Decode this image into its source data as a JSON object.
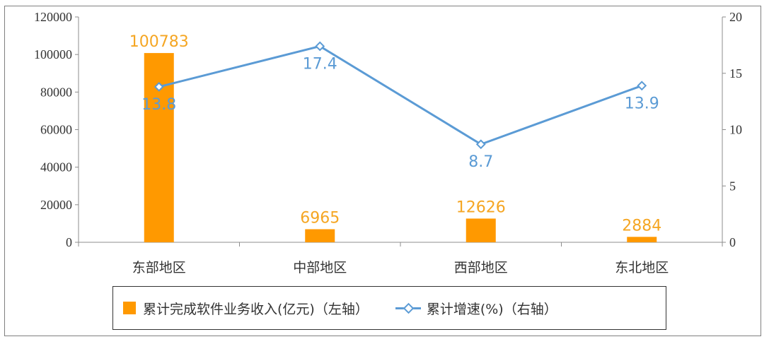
{
  "chart_data": {
    "type": "bar+line",
    "categories": [
      "东部地区",
      "中部地区",
      "西部地区",
      "东北地区"
    ],
    "series": [
      {
        "name": "累计完成软件业务收入(亿元)（左轴）",
        "type": "bar",
        "axis": "left",
        "color": "#ff9900",
        "values": [
          100783,
          6965,
          12626,
          2884
        ],
        "labels": [
          "100783",
          "6965",
          "12626",
          "2884"
        ]
      },
      {
        "name": "累计增速(%)（右轴）",
        "type": "line",
        "axis": "right",
        "color": "#5b9bd5",
        "marker": "diamond",
        "values": [
          13.8,
          17.4,
          8.7,
          13.9
        ],
        "labels": [
          "13.8",
          "17.4",
          "8.7",
          "13.9"
        ]
      }
    ],
    "y_left": {
      "min": 0,
      "max": 120000,
      "ticks": [
        "0",
        "20000",
        "40000",
        "60000",
        "80000",
        "100000",
        "120000"
      ]
    },
    "y_right": {
      "min": 0,
      "max": 20,
      "ticks": [
        "0",
        "5",
        "10",
        "15",
        "20"
      ]
    },
    "grid": false,
    "legend": "bottom"
  }
}
